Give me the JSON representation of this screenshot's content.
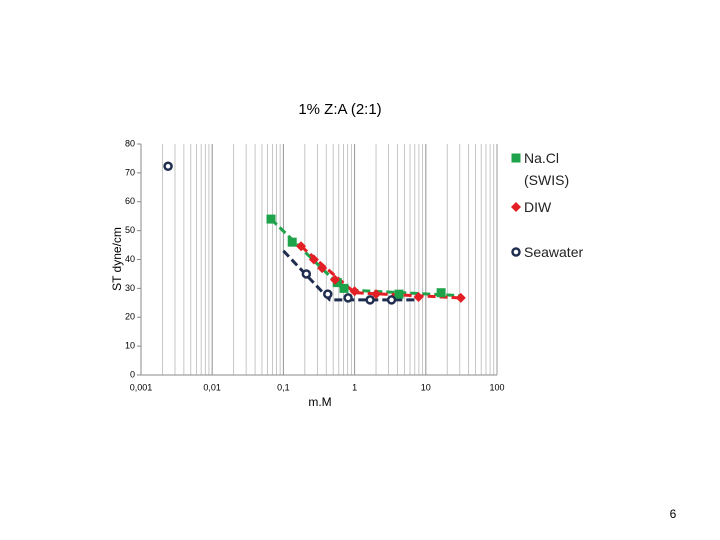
{
  "chart_data": {
    "type": "scatter",
    "title": "1% Z:A (2:1)",
    "x_label": "m.M",
    "y_label": "ST dyne/cm",
    "x_log": true,
    "grid": "vertical-log",
    "xlim": [
      0.001,
      100
    ],
    "xticks": [
      {
        "value": 0.001,
        "label": "0,001"
      },
      {
        "value": 0.01,
        "label": "0,01"
      },
      {
        "value": 0.1,
        "label": "0,1"
      },
      1,
      10,
      100
    ],
    "ylim": [
      0,
      80
    ],
    "yticks": [
      0,
      10,
      20,
      30,
      40,
      50,
      60,
      70,
      80
    ],
    "series": [
      {
        "name": "Na.Cl (SWIS)",
        "color": "#1fa34a",
        "marker": "square",
        "x": [
          0.067,
          0.133,
          0.57,
          0.71,
          4.2,
          16.4
        ],
        "values": [
          54,
          46,
          32,
          30,
          28,
          28.5
        ],
        "fit": {
          "x": [
            0.067,
            0.71,
            30
          ],
          "y": [
            54,
            29.5,
            27.5
          ]
        }
      },
      {
        "name": "DIW",
        "color": "#e31e24",
        "marker": "diamond",
        "x": [
          0.177,
          0.268,
          0.35,
          0.53,
          1.0,
          2.0,
          7.9,
          31
        ],
        "values": [
          44.6,
          40,
          37,
          33,
          29,
          28,
          27,
          26.7
        ],
        "fit": {
          "x": [
            0.177,
            1.0,
            31
          ],
          "y": [
            44.6,
            28.5,
            26.7
          ]
        }
      },
      {
        "name": "Seawater",
        "color": "#1f2d4f",
        "marker": "circle",
        "x": [
          0.0024,
          0.21,
          0.42,
          0.81,
          1.65,
          3.3
        ],
        "values": [
          72.3,
          35,
          28,
          26.7,
          26,
          26
        ],
        "fit": {
          "x": [
            0.1,
            0.45,
            8
          ],
          "y": [
            43,
            26,
            26
          ]
        }
      }
    ]
  },
  "page_number": "6"
}
